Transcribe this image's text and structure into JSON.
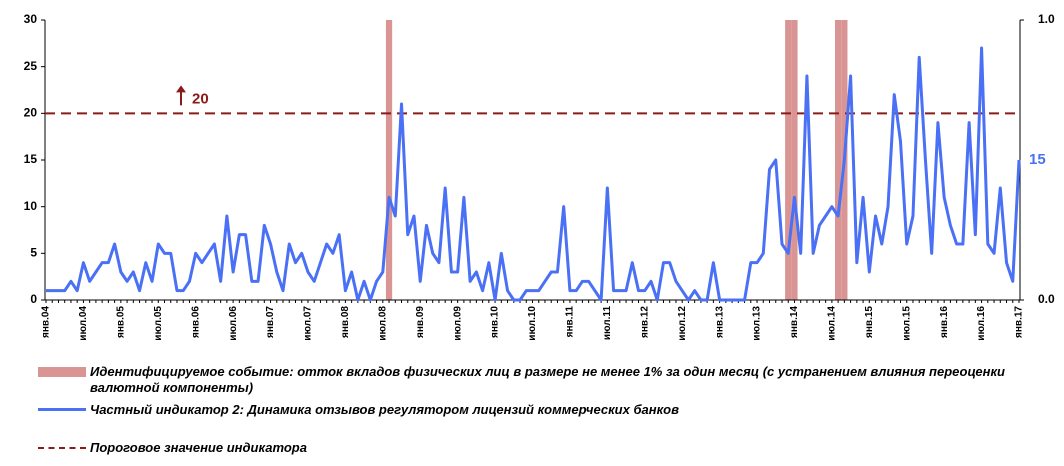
{
  "chart_data": {
    "type": "line",
    "categories": [
      "янв.04",
      null,
      null,
      null,
      null,
      null,
      "июл.04",
      null,
      null,
      null,
      null,
      null,
      "янв.05",
      null,
      null,
      null,
      null,
      null,
      "июл.05",
      null,
      null,
      null,
      null,
      null,
      "янв.06",
      null,
      null,
      null,
      null,
      null,
      "июл.06",
      null,
      null,
      null,
      null,
      null,
      "янв.07",
      null,
      null,
      null,
      null,
      null,
      "июл.07",
      null,
      null,
      null,
      null,
      null,
      "янв.08",
      null,
      null,
      null,
      null,
      null,
      "июл.08",
      null,
      null,
      null,
      null,
      null,
      "янв.09",
      null,
      null,
      null,
      null,
      null,
      "июл.09",
      null,
      null,
      null,
      null,
      null,
      "янв.10",
      null,
      null,
      null,
      null,
      null,
      "июл.10",
      null,
      null,
      null,
      null,
      null,
      "янв.11",
      null,
      null,
      null,
      null,
      null,
      "июл.11",
      null,
      null,
      null,
      null,
      null,
      "янв.12",
      null,
      null,
      null,
      null,
      null,
      "июл.12",
      null,
      null,
      null,
      null,
      null,
      "янв.13",
      null,
      null,
      null,
      null,
      null,
      "июл.13",
      null,
      null,
      null,
      null,
      null,
      "янв.14",
      null,
      null,
      null,
      null,
      null,
      "июл.14",
      null,
      null,
      null,
      null,
      null,
      "янв.15",
      null,
      null,
      null,
      null,
      null,
      "июл.15",
      null,
      null,
      null,
      null,
      null,
      "янв.16",
      null,
      null,
      null,
      null,
      null,
      "июл.16",
      null,
      null,
      null,
      null,
      null,
      "янв.17"
    ],
    "series": [
      {
        "name": "Идентифицируемое событие: отток вкладов физических лиц в размере не менее 1% за один месяц (с устранением влияния переоценки валютной компоненты)",
        "type": "bar",
        "axis": "y2",
        "color": "#d99594",
        "values": [
          0,
          0,
          0,
          0,
          0,
          0,
          0,
          0,
          0,
          0,
          0,
          0,
          0,
          0,
          0,
          0,
          0,
          0,
          0,
          0,
          0,
          0,
          0,
          0,
          0,
          0,
          0,
          0,
          0,
          0,
          0,
          0,
          0,
          0,
          0,
          0,
          0,
          0,
          0,
          0,
          0,
          0,
          0,
          0,
          0,
          0,
          0,
          0,
          0,
          0,
          0,
          0,
          0,
          0,
          0,
          1,
          0,
          0,
          0,
          0,
          0,
          0,
          0,
          0,
          0,
          0,
          0,
          0,
          0,
          0,
          0,
          0,
          0,
          0,
          0,
          0,
          0,
          0,
          0,
          0,
          0,
          0,
          0,
          0,
          0,
          0,
          0,
          0,
          0,
          0,
          0,
          0,
          0,
          0,
          0,
          0,
          0,
          0,
          0,
          0,
          0,
          0,
          0,
          0,
          0,
          0,
          0,
          0,
          0,
          0,
          0,
          0,
          0,
          0,
          0,
          0,
          0,
          0,
          0,
          1,
          1,
          0,
          0,
          0,
          0,
          0,
          0,
          1,
          1,
          0,
          0,
          0,
          0,
          0,
          0,
          0,
          0,
          0,
          0,
          0,
          0,
          0,
          0,
          0,
          0,
          0,
          0,
          0,
          0,
          0,
          0,
          0,
          0,
          0,
          0,
          0,
          0
        ]
      },
      {
        "name": "Частный индикатор 2: Динамика отзывов регулятором лицензий коммерческих банков",
        "type": "line",
        "color": "#4a70f5",
        "values": [
          1,
          1,
          1,
          1,
          2,
          1,
          4,
          2,
          3,
          4,
          4,
          6,
          3,
          2,
          3,
          1,
          4,
          2,
          6,
          5,
          5,
          1,
          1,
          2,
          5,
          4,
          5,
          6,
          2,
          9,
          3,
          7,
          7,
          2,
          2,
          8,
          6,
          3,
          1,
          6,
          4,
          5,
          3,
          2,
          4,
          6,
          5,
          7,
          1,
          3,
          0,
          2,
          0,
          2,
          3,
          11,
          9,
          21,
          7,
          9,
          2,
          8,
          5,
          4,
          12,
          3,
          3,
          11,
          2,
          3,
          1,
          4,
          0,
          5,
          1,
          0,
          0,
          1,
          1,
          1,
          2,
          3,
          3,
          10,
          1,
          1,
          2,
          2,
          1,
          0,
          12,
          1,
          1,
          1,
          4,
          1,
          1,
          2,
          0,
          4,
          4,
          2,
          1,
          0,
          1,
          0,
          0,
          4,
          0,
          0,
          0,
          0,
          0,
          4,
          4,
          5,
          14,
          15,
          6,
          5,
          11,
          5,
          24,
          5,
          8,
          9,
          10,
          9,
          15,
          24,
          4,
          11,
          3,
          9,
          6,
          10,
          22,
          17,
          6,
          9,
          26,
          15,
          5,
          19,
          11,
          8,
          6,
          6,
          19,
          7,
          27,
          6,
          5,
          12,
          4,
          2,
          15
        ]
      }
    ],
    "threshold": {
      "name": "Пороговое значение индикатора",
      "value": 20,
      "color": "#8b1a1a"
    },
    "ylim": [
      0,
      30
    ],
    "yticks": [
      0,
      5,
      10,
      15,
      20,
      25,
      30
    ],
    "y2lim": [
      0,
      1
    ],
    "y2ticks": [
      {
        "value": 0,
        "label": "0.0"
      },
      {
        "value": 1,
        "label": "1.0"
      }
    ]
  }
}
